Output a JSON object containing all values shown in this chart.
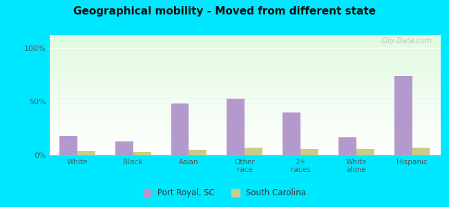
{
  "title": "Geographical mobility - Moved from different state",
  "categories": [
    "White",
    "Black",
    "Asian",
    "Other\nrace",
    "2+\nraces",
    "White\nalone",
    "Hispanic"
  ],
  "port_royal_values": [
    18,
    13,
    48,
    53,
    40,
    17,
    74
  ],
  "south_carolina_values": [
    4,
    3,
    5,
    7,
    6,
    6,
    7
  ],
  "port_royal_color": "#b399cc",
  "south_carolina_color": "#c8cc88",
  "yticks": [
    0,
    50,
    100
  ],
  "ytick_labels": [
    "0%",
    "50%",
    "100%"
  ],
  "ylim": [
    0,
    112
  ],
  "outer_bg": "#00e8ff",
  "legend_port_royal": "Port Royal, SC",
  "legend_sc": "South Carolina",
  "watermark": "City-Data.com"
}
